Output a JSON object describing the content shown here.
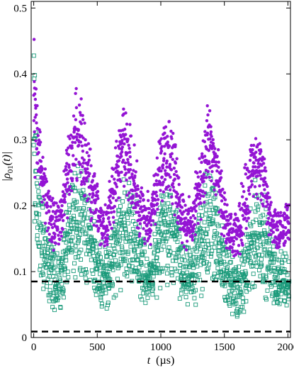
{
  "chart_data": {
    "type": "scatter",
    "title": "",
    "xlabel_var": "t",
    "xlabel_unit": "(µs)",
    "ylabel_var": "|ρ",
    "ylabel_sub": "01",
    "ylabel_arg": "(t)|",
    "xlim": [
      -20,
      2020
    ],
    "ylim": [
      0,
      0.51
    ],
    "xticks": [
      "0",
      "500",
      "1000",
      "1500",
      "2000"
    ],
    "xtick_values": [
      0,
      500,
      1000,
      1500,
      2000
    ],
    "yticks": [
      "0",
      "0.1",
      "0.2",
      "0.3",
      "0.4",
      "0.5"
    ],
    "ytick_values": [
      0,
      0.1,
      0.2,
      0.3,
      0.4,
      0.5
    ],
    "grid": false,
    "legend": "none",
    "hlines": [
      {
        "y": 0.085,
        "style": "dashed",
        "color": "#000000"
      },
      {
        "y": 0.009,
        "style": "dashed",
        "color": "#000000"
      }
    ],
    "series": [
      {
        "marker": "open-square",
        "color": "#1a9a7a",
        "envelope": {
          "t": [
            0,
            40,
            80,
            120,
            160,
            200,
            240,
            280,
            320,
            360,
            400,
            440,
            480,
            520,
            560,
            600,
            640,
            680,
            720,
            760,
            800,
            840,
            880,
            920,
            960,
            1000,
            1040,
            1080,
            1120,
            1160,
            1200,
            1240,
            1280,
            1320,
            1360,
            1400,
            1440,
            1480,
            1520,
            1560,
            1600,
            1640,
            1680,
            1720,
            1760,
            1800,
            1840,
            1880,
            1920,
            1960,
            2000
          ],
          "low": [
            0.1,
            0.08,
            0.05,
            0.04,
            0.04,
            0.03,
            0.05,
            0.07,
            0.09,
            0.09,
            0.08,
            0.07,
            0.05,
            0.04,
            0.04,
            0.04,
            0.05,
            0.07,
            0.07,
            0.08,
            0.07,
            0.05,
            0.04,
            0.04,
            0.05,
            0.07,
            0.07,
            0.08,
            0.06,
            0.04,
            0.04,
            0.04,
            0.04,
            0.06,
            0.07,
            0.08,
            0.06,
            0.05,
            0.04,
            0.03,
            0.02,
            0.03,
            0.04,
            0.06,
            0.07,
            0.06,
            0.05,
            0.04,
            0.04,
            0.04,
            0.05
          ],
          "high": [
            0.5,
            0.26,
            0.22,
            0.17,
            0.15,
            0.13,
            0.18,
            0.24,
            0.27,
            0.29,
            0.26,
            0.23,
            0.18,
            0.15,
            0.15,
            0.16,
            0.2,
            0.24,
            0.26,
            0.25,
            0.22,
            0.18,
            0.15,
            0.15,
            0.18,
            0.23,
            0.26,
            0.25,
            0.21,
            0.16,
            0.14,
            0.15,
            0.19,
            0.24,
            0.28,
            0.27,
            0.22,
            0.18,
            0.15,
            0.13,
            0.12,
            0.14,
            0.18,
            0.23,
            0.26,
            0.24,
            0.2,
            0.16,
            0.14,
            0.13,
            0.13
          ]
        }
      },
      {
        "marker": "filled-circle",
        "color": "#9414d4",
        "envelope": {
          "t": [
            0,
            40,
            80,
            120,
            160,
            200,
            240,
            280,
            320,
            360,
            400,
            440,
            480,
            520,
            560,
            600,
            640,
            680,
            720,
            760,
            800,
            840,
            880,
            920,
            960,
            1000,
            1040,
            1080,
            1120,
            1160,
            1200,
            1240,
            1280,
            1320,
            1360,
            1400,
            1440,
            1480,
            1520,
            1560,
            1600,
            1640,
            1680,
            1720,
            1760,
            1800,
            1840,
            1880,
            1920,
            1960,
            2000
          ],
          "low": [
            0.25,
            0.22,
            0.18,
            0.14,
            0.13,
            0.13,
            0.15,
            0.19,
            0.22,
            0.22,
            0.2,
            0.18,
            0.15,
            0.13,
            0.13,
            0.14,
            0.17,
            0.2,
            0.21,
            0.2,
            0.17,
            0.14,
            0.13,
            0.14,
            0.16,
            0.19,
            0.21,
            0.2,
            0.17,
            0.14,
            0.13,
            0.13,
            0.15,
            0.18,
            0.21,
            0.21,
            0.18,
            0.15,
            0.12,
            0.11,
            0.11,
            0.12,
            0.15,
            0.18,
            0.2,
            0.19,
            0.16,
            0.14,
            0.13,
            0.13,
            0.14
          ],
          "high": [
            0.5,
            0.33,
            0.29,
            0.24,
            0.22,
            0.22,
            0.27,
            0.33,
            0.38,
            0.38,
            0.34,
            0.3,
            0.26,
            0.22,
            0.22,
            0.25,
            0.3,
            0.34,
            0.36,
            0.33,
            0.29,
            0.25,
            0.22,
            0.23,
            0.27,
            0.33,
            0.37,
            0.35,
            0.3,
            0.25,
            0.21,
            0.22,
            0.26,
            0.31,
            0.36,
            0.36,
            0.31,
            0.26,
            0.21,
            0.19,
            0.2,
            0.24,
            0.29,
            0.32,
            0.33,
            0.3,
            0.25,
            0.2,
            0.19,
            0.2,
            0.21
          ]
        }
      }
    ]
  }
}
